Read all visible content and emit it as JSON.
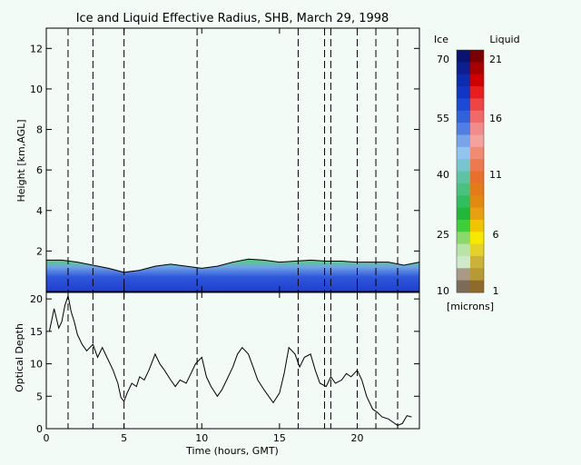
{
  "chart_data": [
    {
      "type": "heatmap",
      "title": "Ice and Liquid Effective Radius, SHB, March 29, 1998",
      "xlabel": "",
      "ylabel": "Height [km,AGL]",
      "xlim": [
        0,
        24
      ],
      "ylim": [
        0,
        13
      ],
      "yticks": [
        2,
        4,
        6,
        8,
        10,
        12
      ],
      "vertical_dashed_lines_hours": [
        1.4,
        3.0,
        5.0,
        9.7,
        16.2,
        17.9,
        18.3,
        20.0,
        21.2,
        22.6
      ],
      "cloud_top_km": [
        [
          0,
          1.55
        ],
        [
          1,
          1.55
        ],
        [
          2,
          1.45
        ],
        [
          3,
          1.3
        ],
        [
          4,
          1.15
        ],
        [
          5,
          0.95
        ],
        [
          6,
          1.05
        ],
        [
          7,
          1.25
        ],
        [
          8,
          1.35
        ],
        [
          9,
          1.25
        ],
        [
          10,
          1.15
        ],
        [
          11,
          1.25
        ],
        [
          12,
          1.45
        ],
        [
          13,
          1.6
        ],
        [
          14,
          1.55
        ],
        [
          15,
          1.45
        ],
        [
          16,
          1.5
        ],
        [
          17,
          1.55
        ],
        [
          18,
          1.5
        ],
        [
          19,
          1.5
        ],
        [
          20,
          1.45
        ],
        [
          21,
          1.45
        ],
        [
          22,
          1.45
        ],
        [
          23,
          1.3
        ],
        [
          24,
          1.45
        ]
      ],
      "colorbar": {
        "ice_label": "Ice",
        "liquid_label": "Liquid",
        "units": "[microns]",
        "ice_ticks": [
          "70",
          "55",
          "40",
          "25",
          "10"
        ],
        "liquid_ticks": [
          "21",
          "16",
          "11",
          "6",
          "1"
        ],
        "ice_colors": [
          "#0a1470",
          "#0b1f90",
          "#0c2db0",
          "#1036c8",
          "#1a4ad6",
          "#2f62dc",
          "#4f7fe2",
          "#77a4ea",
          "#91c4f0",
          "#77c6cf",
          "#5cc4a2",
          "#49c27f",
          "#2fbf5e",
          "#1fb83a",
          "#3ccf3a",
          "#8ad96a",
          "#b8e4a8",
          "#cfe9cb",
          "#a89a86",
          "#7d6a58"
        ],
        "liquid_colors": [
          "#7a0000",
          "#a80000",
          "#d00000",
          "#e81d1d",
          "#ee4444",
          "#f06a6a",
          "#f28c8c",
          "#f3a39c",
          "#f08a70",
          "#ec7a4e",
          "#e8702c",
          "#e57a18",
          "#e08a10",
          "#e8a010",
          "#f0c400",
          "#f8e800",
          "#e4d22a",
          "#cdb23a",
          "#b89a34",
          "#8f6a2a"
        ]
      }
    },
    {
      "type": "line",
      "title": "",
      "xlabel": "Time (hours, GMT)",
      "ylabel": "Optical Depth",
      "xlim": [
        0,
        24
      ],
      "ylim": [
        0,
        21
      ],
      "xticks": [
        0,
        5,
        10,
        15,
        20
      ],
      "yticks": [
        0,
        5,
        10,
        15,
        20
      ],
      "vertical_dashed_lines_hours": [
        1.4,
        3.0,
        5.0,
        9.7,
        16.2,
        17.9,
        18.3,
        20.0,
        21.2,
        22.6
      ],
      "series": [
        {
          "x": [
            0.2,
            0.5,
            0.8,
            1.0,
            1.2,
            1.4,
            1.6,
            1.8,
            2.0,
            2.3,
            2.6,
            3.0,
            3.3,
            3.6,
            4.0,
            4.3,
            4.6,
            4.8,
            5.0,
            5.2,
            5.5,
            5.8,
            6.0,
            6.3,
            6.6,
            7.0,
            7.3,
            7.6,
            8.0,
            8.3,
            8.6,
            9.0,
            9.3,
            9.6,
            10.0,
            10.3,
            10.6,
            11.0,
            11.3,
            11.6,
            12.0,
            12.3,
            12.6,
            13.0,
            13.3,
            13.6,
            14.0,
            14.3,
            14.6,
            15.0,
            15.3,
            15.6,
            16.0,
            16.3,
            16.6,
            17.0,
            17.3,
            17.6,
            18.0,
            18.3,
            18.6,
            19.0,
            19.3,
            19.6,
            20.0,
            20.3,
            20.6,
            21.0,
            21.3,
            21.6,
            22.0,
            22.3,
            22.6,
            22.9,
            23.2,
            23.5
          ],
          "y": [
            15.0,
            18.5,
            15.5,
            16.5,
            19.0,
            20.5,
            18.0,
            16.5,
            14.5,
            13.0,
            12.0,
            13.0,
            11.0,
            12.5,
            10.5,
            9.0,
            7.0,
            4.8,
            4.2,
            5.5,
            7.0,
            6.5,
            8.0,
            7.5,
            9.0,
            11.5,
            10.0,
            9.0,
            7.5,
            6.5,
            7.5,
            7.0,
            8.5,
            10.0,
            11.0,
            8.0,
            6.5,
            5.0,
            6.0,
            7.5,
            9.5,
            11.5,
            12.5,
            11.5,
            9.5,
            7.5,
            6.0,
            5.0,
            4.0,
            5.5,
            8.5,
            12.5,
            11.5,
            9.5,
            11.0,
            11.5,
            9.0,
            7.0,
            6.5,
            8.0,
            7.0,
            7.5,
            8.5,
            8.0,
            9.0,
            7.5,
            5.0,
            3.0,
            2.5,
            1.8,
            1.5,
            1.0,
            0.5,
            0.8,
            2.0,
            1.8
          ]
        }
      ]
    }
  ]
}
